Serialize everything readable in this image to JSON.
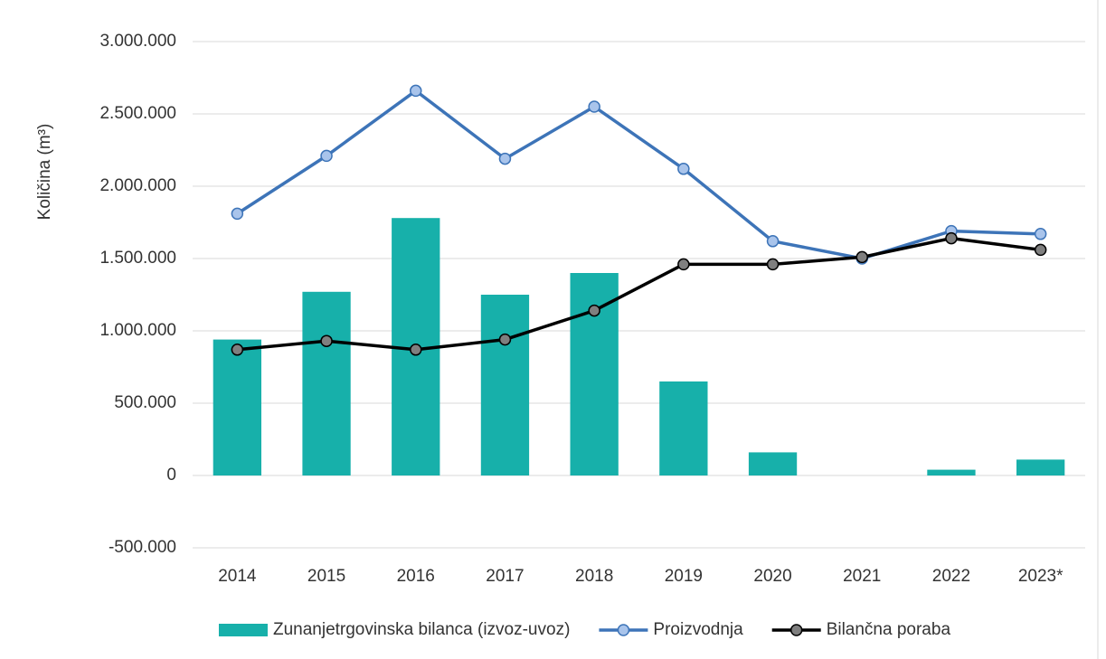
{
  "chart_data": {
    "type": "combo",
    "y_label": "Količina (m³)",
    "categories": [
      "2014",
      "2015",
      "2016",
      "2017",
      "2018",
      "2019",
      "2020",
      "2021",
      "2022",
      "2023*"
    ],
    "series": [
      {
        "name": "Zunanjetrgovinska bilanca (izvoz-uvoz)",
        "type": "bar",
        "color": "#17b0aa",
        "values": [
          940000,
          1270000,
          1780000,
          1250000,
          1400000,
          650000,
          160000,
          0,
          40000,
          110000
        ]
      },
      {
        "name": "Proizvodnja",
        "type": "line",
        "color": "#3d74b8",
        "marker_color": "#a9c4eb",
        "values": [
          1810000,
          2210000,
          2660000,
          2190000,
          2550000,
          2120000,
          1620000,
          1500000,
          1690000,
          1670000
        ]
      },
      {
        "name": "Bilančna poraba",
        "type": "line",
        "color": "#000000",
        "marker_color": "#7f7f7f",
        "values": [
          870000,
          930000,
          870000,
          940000,
          1140000,
          1460000,
          1460000,
          1510000,
          1640000,
          1560000
        ]
      }
    ],
    "ylim": [
      -500000,
      3000000
    ],
    "yticks": [
      {
        "value": -500000,
        "label": "-500.000"
      },
      0,
      {
        "value": 500000,
        "label": "500.000"
      },
      {
        "value": 1000000,
        "label": "1.000.000"
      },
      {
        "value": 1500000,
        "label": "1.500.000"
      },
      {
        "value": 2000000,
        "label": "2.000.000"
      },
      {
        "value": 2500000,
        "label": "2.500.000"
      },
      {
        "value": 3000000,
        "label": "3.000.000"
      }
    ],
    "grid": true,
    "legend": "bottom"
  }
}
